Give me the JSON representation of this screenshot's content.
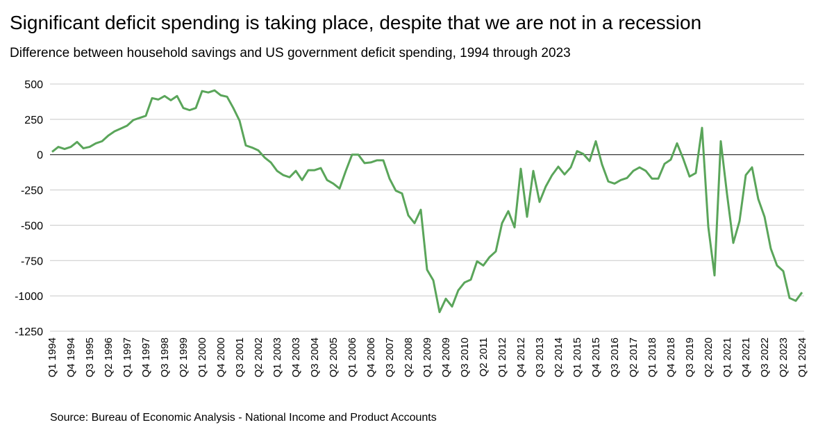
{
  "chart_data": {
    "type": "line",
    "title": "Significant deficit spending is taking place, despite that we are not in a recession",
    "subtitle": "Difference between household savings and US government deficit spending, 1994 through 2023",
    "source": "Source: Bureau of Economic Analysis - National Income and Product Accounts",
    "categories": [
      "Q1 1994",
      null,
      null,
      "Q4 1994",
      null,
      null,
      "Q3 1995",
      null,
      null,
      "Q2 1996",
      null,
      null,
      "Q1 1997",
      null,
      null,
      "Q4 1997",
      null,
      null,
      "Q3 1998",
      null,
      null,
      "Q2 1999",
      null,
      null,
      "Q1 2000",
      null,
      null,
      "Q4 2000",
      null,
      null,
      "Q3 2001",
      null,
      null,
      "Q2 2002",
      null,
      null,
      "Q1 2003",
      null,
      null,
      "Q4 2003",
      null,
      null,
      "Q3 2004",
      null,
      null,
      "Q2 2005",
      null,
      null,
      "Q1 2006",
      null,
      null,
      "Q4 2006",
      null,
      null,
      "Q3 2007",
      null,
      null,
      "Q2 2008",
      null,
      null,
      "Q1 2009",
      null,
      null,
      "Q4 2009",
      null,
      null,
      "Q3 2010",
      null,
      null,
      "Q2 2011",
      null,
      null,
      "Q1 2012",
      null,
      null,
      "Q4 2012",
      null,
      null,
      "Q3 2013",
      null,
      null,
      "Q2 2014",
      null,
      null,
      "Q1 2015",
      null,
      null,
      "Q4 2015",
      null,
      null,
      "Q3 2016",
      null,
      null,
      "Q2 2017",
      null,
      null,
      "Q1 2018",
      null,
      null,
      "Q4 2018",
      null,
      null,
      "Q3 2019",
      null,
      null,
      "Q2 2020",
      null,
      null,
      "Q1 2021",
      null,
      null,
      "Q4 2021",
      null,
      null,
      "Q3 2022",
      null,
      null,
      "Q2 2023",
      null,
      null,
      "Q1 2024"
    ],
    "series": [
      {
        "color": "#5aa55a",
        "values": [
          20,
          55,
          40,
          55,
          90,
          45,
          55,
          80,
          95,
          135,
          165,
          185,
          205,
          245,
          260,
          275,
          400,
          390,
          415,
          385,
          415,
          330,
          315,
          330,
          450,
          440,
          455,
          420,
          410,
          330,
          240,
          65,
          50,
          30,
          -20,
          -55,
          -115,
          -145,
          -160,
          -115,
          -180,
          -110,
          -110,
          -95,
          -180,
          -205,
          -240,
          -115,
          0,
          0,
          -60,
          -55,
          -40,
          -40,
          -170,
          -255,
          -275,
          -430,
          -485,
          -390,
          -815,
          -890,
          -1115,
          -1020,
          -1075,
          -960,
          -905,
          -885,
          -755,
          -785,
          -725,
          -685,
          -485,
          -400,
          -515,
          -100,
          -440,
          -115,
          -335,
          -225,
          -145,
          -85,
          -140,
          -90,
          25,
          5,
          -45,
          95,
          -70,
          -190,
          -205,
          -180,
          -165,
          -115,
          -90,
          -115,
          -170,
          -170,
          -65,
          -35,
          80,
          -30,
          -155,
          -130,
          190,
          -510,
          -855,
          95,
          -280,
          -625,
          -470,
          -145,
          -90,
          -315,
          -440,
          -665,
          -785,
          -825,
          -1015,
          -1035,
          -975
        ]
      }
    ],
    "ylim": [
      -1250,
      500
    ],
    "yticks": [
      500,
      250,
      0,
      -250,
      -500,
      -750,
      -1000,
      -1250
    ],
    "grid": true
  }
}
